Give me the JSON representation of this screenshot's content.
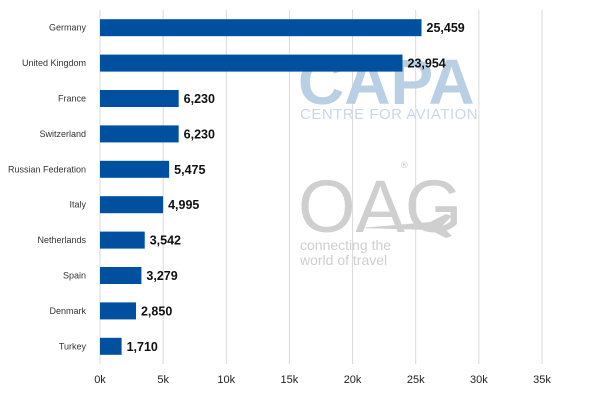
{
  "chart_data": {
    "type": "bar",
    "orientation": "horizontal",
    "categories": [
      "Germany",
      "United Kingdom",
      "France",
      "Switzerland",
      "Russian Federation",
      "Italy",
      "Netherlands",
      "Spain",
      "Denmark",
      "Turkey"
    ],
    "values": [
      25459,
      23954,
      6230,
      6230,
      5475,
      4995,
      3542,
      3279,
      2850,
      1710
    ],
    "value_labels": [
      "25,459",
      "23,954",
      "6,230",
      "6,230",
      "5,475",
      "4,995",
      "3,542",
      "3,279",
      "2,850",
      "1,710"
    ],
    "xlim": [
      0,
      35000
    ],
    "x_ticks": [
      0,
      5000,
      10000,
      15000,
      20000,
      25000,
      30000,
      35000
    ],
    "x_tick_labels": [
      "0k",
      "5k",
      "10k",
      "15k",
      "20k",
      "25k",
      "30k",
      "35k"
    ],
    "grid": "vertical",
    "bar_color": "#0050a0",
    "grid_color": "#d9d9d9",
    "title": "",
    "xlabel": "",
    "ylabel": ""
  },
  "watermarks": {
    "capa_logo": "CAPA",
    "capa_tagline": "CENTRE FOR AVIATION",
    "oag_logo": "OAG",
    "oag_registered": "®",
    "oag_tagline_line1": "connecting the",
    "oag_tagline_line2": "world of travel",
    "capa_color": "#b9cfe4",
    "oag_color": "#cfcfcf"
  }
}
